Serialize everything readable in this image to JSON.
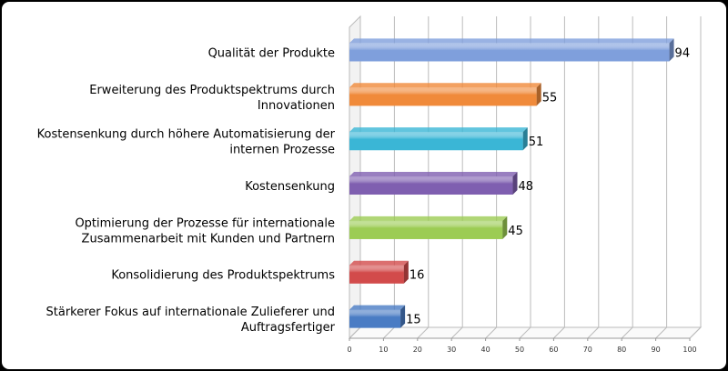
{
  "chart_data": {
    "type": "bar",
    "orientation": "horizontal",
    "style": "3d",
    "categories": [
      [
        "Qualität der Produkte"
      ],
      [
        "Erweiterung des Produktspektrums durch",
        "Innovationen"
      ],
      [
        "Kostensenkung durch höhere Automatisierung der",
        "internen Prozesse"
      ],
      [
        "Kostensenkung"
      ],
      [
        "Optimierung der Prozesse für internationale",
        "Zusammenarbeit mit Kunden und Partnern"
      ],
      [
        "Konsolidierung des Produktspektrums"
      ],
      [
        "Stärkerer Fokus auf internationale Zulieferer und",
        "Auftragsfertiger"
      ]
    ],
    "values": [
      94,
      55,
      51,
      48,
      45,
      16,
      15
    ],
    "colors": [
      "#7f9fdc",
      "#f08a3a",
      "#3ab6d6",
      "#7f5fb0",
      "#9ccc54",
      "#d24b4b",
      "#4a7cc4"
    ],
    "xlim": [
      0,
      100
    ],
    "xticks": [
      0,
      10,
      20,
      30,
      40,
      50,
      60,
      70,
      80,
      90,
      100
    ],
    "grid": true,
    "legend": "none"
  }
}
